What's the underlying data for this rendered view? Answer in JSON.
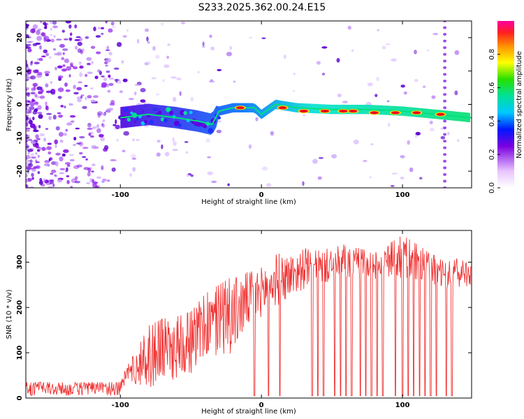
{
  "figure": {
    "title": "S233.2025.362.00.24.E15",
    "colors": {
      "snr_line": "#f03434",
      "ridge_hot": "#e8001a",
      "scatter": "#7a00e0",
      "frame": "#000000",
      "background": "#ffffff"
    }
  },
  "chart_data": [
    {
      "type": "heatmap",
      "title": "S233.2025.362.00.24.E15",
      "xlabel": "Height of straight line (km)",
      "ylabel": "Frequency (Hz)",
      "xlim": [
        -167,
        149
      ],
      "ylim": [
        -25,
        25
      ],
      "x_ticks": [
        -100,
        0,
        100
      ],
      "x_tick_labels": [
        "-100",
        "0",
        "100"
      ],
      "y_ticks": [
        -20,
        -10,
        0,
        10,
        20
      ],
      "y_tick_labels": [
        "-20",
        "-10",
        "0",
        "10",
        "20"
      ],
      "colorbar": {
        "label": "Normalized spectral amplitude",
        "range": [
          0,
          1
        ],
        "ticks": [
          0.0,
          0.2,
          0.4,
          0.6,
          0.8
        ],
        "tick_labels": [
          "0.0",
          "0.2",
          "0.4",
          "0.6",
          "0.8"
        ]
      },
      "ridge_points": [
        {
          "x": -100,
          "y": -4
        },
        {
          "x": -80,
          "y": -3
        },
        {
          "x": -60,
          "y": -4
        },
        {
          "x": -45,
          "y": -5
        },
        {
          "x": -35,
          "y": -6
        },
        {
          "x": -30,
          "y": -2
        },
        {
          "x": -20,
          "y": -1
        },
        {
          "x": -5,
          "y": -1
        },
        {
          "x": 0,
          "y": -3
        },
        {
          "x": 10,
          "y": 0
        },
        {
          "x": 25,
          "y": -1
        },
        {
          "x": 50,
          "y": -1.5
        },
        {
          "x": 75,
          "y": -1.5
        },
        {
          "x": 100,
          "y": -2
        },
        {
          "x": 125,
          "y": -3
        },
        {
          "x": 149,
          "y": -4
        }
      ],
      "hot_spots": [
        {
          "x": -15,
          "y": -1
        },
        {
          "x": 15,
          "y": -1
        },
        {
          "x": 30,
          "y": -2
        },
        {
          "x": 45,
          "y": -2
        },
        {
          "x": 58,
          "y": -2
        },
        {
          "x": 65,
          "y": -2
        },
        {
          "x": 80,
          "y": -2.5
        },
        {
          "x": 95,
          "y": -2.5
        },
        {
          "x": 110,
          "y": -2.5
        },
        {
          "x": 127,
          "y": -3
        }
      ]
    },
    {
      "type": "line",
      "xlabel": "Height of straight line (km)",
      "ylabel": "SNR (10 * v/v)",
      "xlim": [
        -167,
        149
      ],
      "ylim": [
        0,
        370
      ],
      "x_ticks": [
        -100,
        0,
        100
      ],
      "x_tick_labels": [
        "-100",
        "0",
        "100"
      ],
      "y_ticks": [
        0,
        100,
        200,
        300
      ],
      "y_tick_labels": [
        "0",
        "100",
        "200",
        "300"
      ],
      "series": [
        {
          "name": "SNR",
          "x": [
            -167,
            -140,
            -120,
            -100,
            -95,
            -90,
            -80,
            -70,
            -60,
            -50,
            -40,
            -30,
            -20,
            -10,
            0,
            10,
            20,
            30,
            40,
            60,
            80,
            100,
            120,
            130,
            140,
            149
          ],
          "min": [
            5,
            5,
            5,
            5,
            40,
            30,
            20,
            30,
            40,
            50,
            80,
            90,
            100,
            150,
            180,
            200,
            220,
            240,
            250,
            260,
            260,
            260,
            250,
            240,
            240,
            250
          ],
          "max": [
            35,
            35,
            35,
            35,
            80,
            95,
            160,
            175,
            180,
            190,
            230,
            250,
            270,
            280,
            290,
            320,
            320,
            330,
            325,
            340,
            320,
            360,
            320,
            300,
            310,
            310
          ],
          "dropouts": [
            -5,
            5,
            13,
            36,
            40,
            44,
            52,
            56,
            60,
            64,
            70,
            74,
            78,
            82,
            86,
            95,
            100,
            104,
            108,
            112,
            116,
            120,
            124,
            131,
            135
          ]
        }
      ]
    }
  ]
}
